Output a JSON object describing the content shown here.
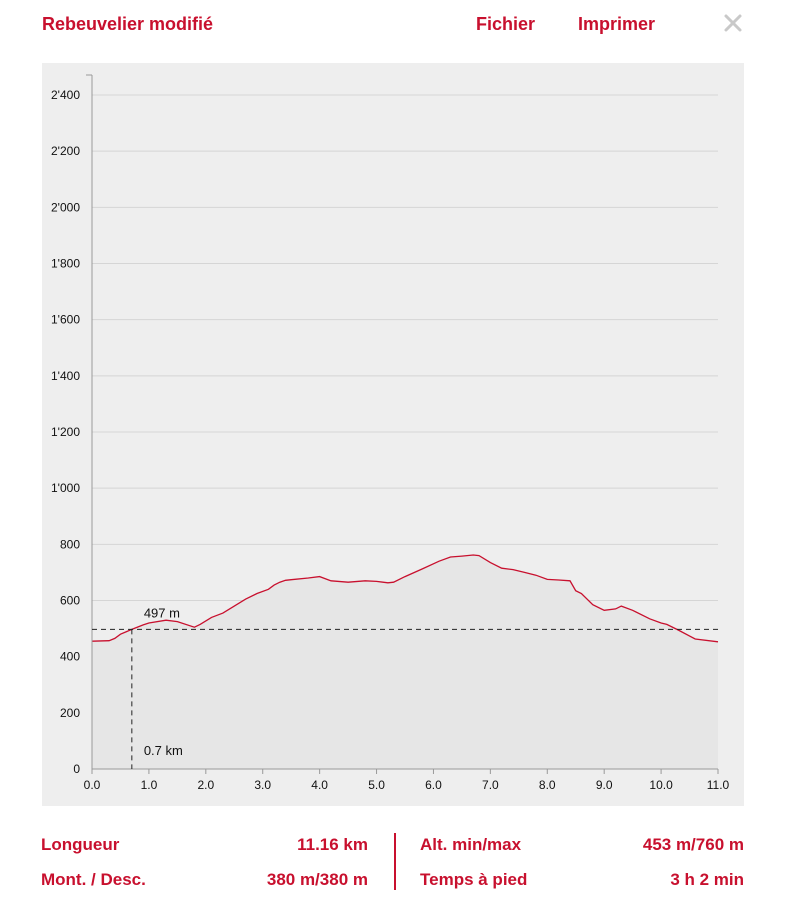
{
  "header": {
    "title": "Rebeuvelier modifié",
    "menu": [
      "Fichier",
      "Imprimer"
    ],
    "close_icon": "close-x-icon"
  },
  "colors": {
    "accent": "#c8102e",
    "panel": "#eeeeee",
    "fill": "#e6e6e6",
    "grid": "#d5d5d5"
  },
  "chart_data": {
    "type": "area",
    "title": "",
    "xlabel": "",
    "ylabel": "",
    "xlim": [
      0,
      11
    ],
    "ylim": [
      0,
      2400
    ],
    "grid": true,
    "legend": "none",
    "x_ticks": [
      0,
      1,
      2,
      3,
      4,
      5,
      6,
      7,
      8,
      9,
      10,
      11
    ],
    "x_tick_labels": [
      "0.0",
      "1.0",
      "2.0",
      "3.0",
      "4.0",
      "5.0",
      "6.0",
      "7.0",
      "8.0",
      "9.0",
      "10.0",
      "11.0"
    ],
    "y_ticks": [
      0,
      200,
      400,
      600,
      800,
      1000,
      1200,
      1400,
      1600,
      1800,
      2000,
      2200,
      2400
    ],
    "y_tick_labels": [
      "0",
      "200",
      "400",
      "600",
      "800",
      "1'000",
      "1'200",
      "1'400",
      "1'600",
      "1'800",
      "2'000",
      "2'200",
      "2'400"
    ],
    "series": [
      {
        "x": [
          0,
          0.3,
          0.4,
          0.5,
          0.7,
          0.9,
          1.0,
          1.3,
          1.5,
          1.8,
          1.9,
          2.1,
          2.3,
          2.5,
          2.7,
          2.9,
          3.1,
          3.2,
          3.3,
          3.4,
          3.5,
          3.8,
          4.0,
          4.2,
          4.5,
          4.8,
          5.0,
          5.2,
          5.3,
          5.5,
          5.8,
          6.1,
          6.3,
          6.5,
          6.7,
          6.8,
          7.0,
          7.2,
          7.4,
          7.6,
          7.8,
          8.0,
          8.2,
          8.4,
          8.5,
          8.6,
          8.8,
          9.0,
          9.2,
          9.3,
          9.5,
          9.8,
          10.0,
          10.1,
          10.3,
          10.6,
          11.0
        ],
        "y": [
          455,
          457,
          465,
          480,
          497,
          513,
          520,
          530,
          525,
          505,
          515,
          540,
          555,
          580,
          605,
          625,
          640,
          655,
          665,
          672,
          674,
          680,
          685,
          670,
          665,
          670,
          668,
          663,
          665,
          685,
          712,
          740,
          755,
          758,
          762,
          760,
          735,
          715,
          710,
          700,
          690,
          675,
          673,
          670,
          635,
          625,
          585,
          565,
          570,
          580,
          565,
          535,
          520,
          515,
          495,
          463,
          453
        ]
      }
    ],
    "annotations": [
      {
        "text": "497 m",
        "x": 0.7,
        "y": 497
      },
      {
        "text": "0.7 km",
        "x": 0.7,
        "y": 0
      }
    ]
  },
  "stats": {
    "length_label": "Longueur",
    "length_value": "11.16 km",
    "updown_label": "Mont. / Desc.",
    "updown_value": "380 m/380 m",
    "alt_label": "Alt. min/max",
    "alt_value": "453 m/760 m",
    "time_label": "Temps à pied",
    "time_value": "3 h 2 min"
  }
}
